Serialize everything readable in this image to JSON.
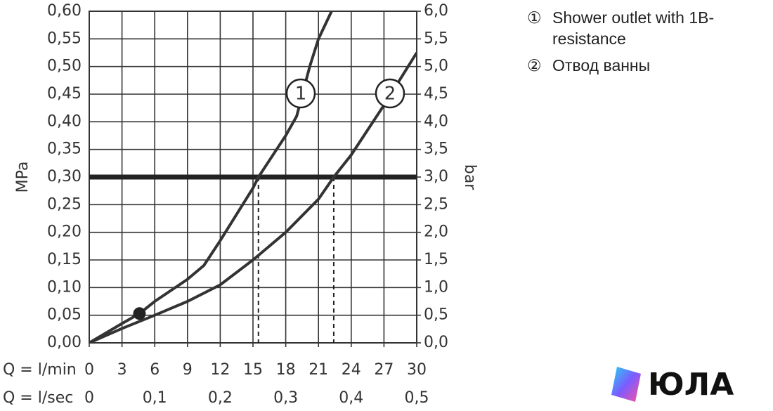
{
  "chart_data": {
    "type": "line",
    "y_label": "MPa",
    "y2_label": "bar",
    "x_label": "Q = l/min",
    "x2_label": "Q = l/sec",
    "xlim": [
      0,
      30
    ],
    "xticks": [
      0,
      3,
      6,
      9,
      12,
      15,
      18,
      21,
      24,
      27,
      30
    ],
    "x2lim": [
      0,
      0.5
    ],
    "x2ticks": [
      0,
      {
        "value": 0.1,
        "label": "0,1"
      },
      {
        "value": 0.2,
        "label": "0,2"
      },
      {
        "value": 0.3,
        "label": "0,3"
      },
      {
        "value": 0.4,
        "label": "0,4"
      },
      {
        "value": 0.5,
        "label": "0,5"
      }
    ],
    "ylim": [
      0,
      0.6
    ],
    "yticks": [
      {
        "value": 0,
        "label": "0,00"
      },
      {
        "value": 0.05,
        "label": "0,05"
      },
      {
        "value": 0.1,
        "label": "0,10"
      },
      {
        "value": 0.15,
        "label": "0,15"
      },
      {
        "value": 0.2,
        "label": "0,20"
      },
      {
        "value": 0.25,
        "label": "0,25"
      },
      {
        "value": 0.3,
        "label": "0,30"
      },
      {
        "value": 0.35,
        "label": "0,35"
      },
      {
        "value": 0.4,
        "label": "0,40"
      },
      {
        "value": 0.45,
        "label": "0,45"
      },
      {
        "value": 0.5,
        "label": "0,50"
      },
      {
        "value": 0.55,
        "label": "0,55"
      },
      {
        "value": 0.6,
        "label": "0,60"
      }
    ],
    "y2lim": [
      0,
      6
    ],
    "y2ticks": [
      {
        "value": 0,
        "label": "0,0"
      },
      {
        "value": 0.5,
        "label": "0,5"
      },
      {
        "value": 1,
        "label": "1,0"
      },
      {
        "value": 1.5,
        "label": "1,5"
      },
      {
        "value": 2,
        "label": "2,0"
      },
      {
        "value": 2.5,
        "label": "2,5"
      },
      {
        "value": 3,
        "label": "3,0"
      },
      {
        "value": 3.5,
        "label": "3,5"
      },
      {
        "value": 4,
        "label": "4,0"
      },
      {
        "value": 4.5,
        "label": "4,5"
      },
      {
        "value": 5,
        "label": "5,0"
      },
      {
        "value": 5.5,
        "label": "5,5"
      },
      {
        "value": 6,
        "label": "6,0"
      }
    ],
    "grid": true,
    "series": [
      {
        "name": "Shower outlet with 1B-resistance",
        "marker": "①",
        "label": "1",
        "color": "#333333",
        "x": [
          0,
          3,
          4.6,
          6,
          9,
          10.5,
          12,
          15,
          15.5,
          18,
          19,
          20.2,
          21,
          22.2
        ],
        "values": [
          0,
          0.035,
          0.053,
          0.075,
          0.115,
          0.14,
          0.185,
          0.28,
          0.3,
          0.375,
          0.41,
          0.5,
          0.55,
          0.6
        ]
      },
      {
        "name": "Отвод ванны",
        "marker": "②",
        "label": "2",
        "color": "#333333",
        "x": [
          0,
          3,
          6,
          9,
          12,
          15,
          18,
          21,
          22.4,
          24,
          27,
          30
        ],
        "values": [
          0,
          0.026,
          0.05,
          0.075,
          0.105,
          0.15,
          0.2,
          0.26,
          0.3,
          0.34,
          0.43,
          0.525
        ]
      }
    ],
    "reference_line": {
      "y": 0.3
    },
    "dashed_x": [
      15.5,
      22.4
    ],
    "marked_point": {
      "x": 4.6,
      "y": 0.053
    },
    "watermark": "ЮЛА"
  }
}
